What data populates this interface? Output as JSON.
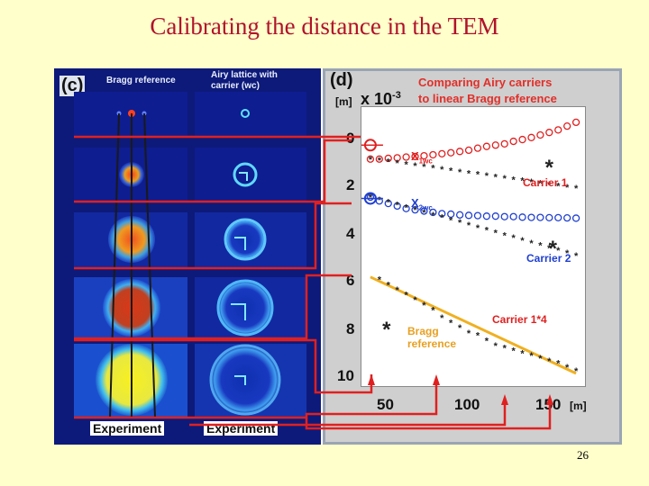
{
  "slide": {
    "title": "Calibrating the distance in the TEM",
    "page_number": "26"
  },
  "figure": {
    "left_panel": {
      "label": "(c)",
      "col1_header": "Bragg reference",
      "col2_header_line1": "Airy lattice with",
      "col2_header_line2": "carrier (wc)",
      "col1_footer": "Experiment",
      "col2_footer": "Experiment"
    },
    "right_panel": {
      "label": "(d)",
      "unit_y": "[m]",
      "scale": "x 10",
      "scale_exp": "-3",
      "title_line1": "Comparing Airy carriers",
      "title_line2": "to linear Bragg reference",
      "y_ticks": [
        "0",
        "2",
        "4",
        "6",
        "8",
        "10"
      ],
      "x_ticks": [
        "50",
        "100",
        "150"
      ],
      "x_unit": "[m]",
      "legend": {
        "x1wc": "X",
        "x1wc_sub": "1wc",
        "x2wc": "X",
        "x2wc_sub": "2wc",
        "carrier1": "Carrier 1",
        "carrier2": "Carrier 2",
        "carrier1x4": "Carrier 1*4",
        "bragg_line1": "Bragg",
        "bragg_line2": "reference"
      }
    }
  },
  "chart_data": {
    "type": "scatter",
    "xlim": [
      35,
      160
    ],
    "ylim": [
      10.5,
      -0.5
    ],
    "series": [
      {
        "name": "X1wc",
        "marker": "circle",
        "color": "#e02020",
        "x": [
          40,
          45,
          50,
          55,
          60,
          65,
          70,
          75,
          80,
          85,
          90,
          95,
          100,
          105,
          110,
          115,
          120,
          125,
          130,
          135,
          140,
          145,
          150,
          155
        ],
        "y": [
          1.55,
          1.55,
          1.52,
          1.5,
          1.47,
          1.45,
          1.42,
          1.38,
          1.34,
          1.3,
          1.25,
          1.2,
          1.12,
          1.05,
          1.0,
          0.95,
          0.85,
          0.78,
          0.7,
          0.6,
          0.5,
          0.4,
          0.25,
          0.1
        ]
      },
      {
        "name": "Carrier 1",
        "marker": "star",
        "color": "#222222",
        "x": [
          40,
          45,
          50,
          55,
          60,
          65,
          70,
          75,
          80,
          85,
          90,
          95,
          100,
          105,
          110,
          115,
          120,
          125,
          130,
          135,
          140,
          145,
          150,
          155
        ],
        "y": [
          1.55,
          1.6,
          1.65,
          1.7,
          1.75,
          1.8,
          1.85,
          1.9,
          1.95,
          2.0,
          2.05,
          2.1,
          2.15,
          2.2,
          2.25,
          2.3,
          2.35,
          2.4,
          2.45,
          2.5,
          2.55,
          2.6,
          2.65,
          2.7
        ]
      },
      {
        "name": "X2wc",
        "marker": "circle",
        "color": "#2040d0",
        "x": [
          40,
          45,
          50,
          55,
          60,
          65,
          70,
          75,
          80,
          85,
          90,
          95,
          100,
          105,
          110,
          115,
          120,
          125,
          130,
          135,
          140,
          145,
          150,
          155
        ],
        "y": [
          3.05,
          3.2,
          3.3,
          3.4,
          3.5,
          3.55,
          3.6,
          3.65,
          3.7,
          3.72,
          3.75,
          3.77,
          3.78,
          3.8,
          3.8,
          3.82,
          3.82,
          3.84,
          3.85,
          3.85,
          3.86,
          3.86,
          3.87,
          3.88
        ]
      },
      {
        "name": "Carrier 2",
        "marker": "star",
        "color": "#222222",
        "x": [
          40,
          45,
          50,
          55,
          60,
          65,
          70,
          75,
          80,
          85,
          90,
          95,
          100,
          105,
          110,
          115,
          120,
          125,
          130,
          135,
          140,
          145,
          150,
          155
        ],
        "y": [
          3.05,
          3.15,
          3.25,
          3.35,
          3.45,
          3.55,
          3.65,
          3.75,
          3.85,
          3.95,
          4.05,
          4.15,
          4.25,
          4.35,
          4.45,
          4.55,
          4.65,
          4.75,
          4.85,
          4.95,
          5.05,
          5.15,
          5.25,
          5.35
        ]
      },
      {
        "name": "Carrier 1*4",
        "marker": "line",
        "color": "#f0b020",
        "x": [
          40,
          155
        ],
        "y": [
          6.2,
          10.0
        ]
      },
      {
        "name": "Bragg reference",
        "marker": "star",
        "color": "#222222",
        "x": [
          45,
          50,
          55,
          60,
          65,
          70,
          75,
          80,
          85,
          90,
          95,
          100,
          105,
          110,
          115,
          120,
          125,
          130,
          135,
          140,
          145,
          150,
          155
        ],
        "y": [
          6.3,
          6.5,
          6.7,
          6.9,
          7.1,
          7.3,
          7.5,
          7.8,
          8.0,
          8.2,
          8.4,
          8.5,
          8.7,
          8.9,
          9.0,
          9.1,
          9.2,
          9.3,
          9.4,
          9.5,
          9.6,
          9.75,
          9.9
        ]
      }
    ]
  }
}
